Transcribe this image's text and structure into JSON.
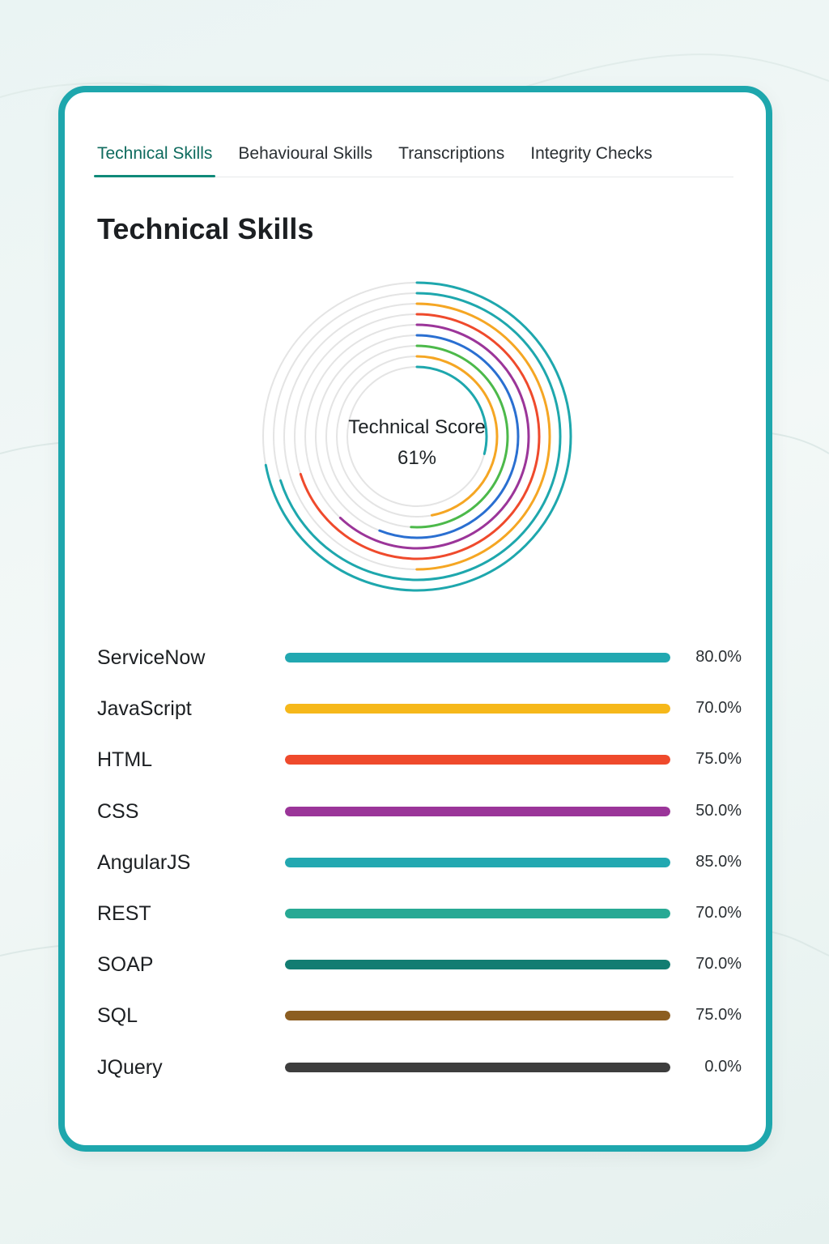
{
  "tabs": [
    {
      "label": "Technical Skills",
      "active": true
    },
    {
      "label": "Behavioural Skills",
      "active": false
    },
    {
      "label": "Transcriptions",
      "active": false
    },
    {
      "label": "Integrity Checks",
      "active": false
    }
  ],
  "section_title": "Technical Skills",
  "score": {
    "label": "Technical Score",
    "value": "61%",
    "value_num": 61
  },
  "skills": [
    {
      "name": "ServiceNow",
      "percent_label": "80.0%",
      "percent": 80.0,
      "color": "#22a8b1"
    },
    {
      "name": "JavaScript",
      "percent_label": "70.0%",
      "percent": 70.0,
      "color": "#f6b81a"
    },
    {
      "name": "HTML",
      "percent_label": "75.0%",
      "percent": 75.0,
      "color": "#ef4a2c"
    },
    {
      "name": "CSS",
      "percent_label": "50.0%",
      "percent": 50.0,
      "color": "#9b3599"
    },
    {
      "name": "AngularJS",
      "percent_label": "85.0%",
      "percent": 85.0,
      "color": "#22a8b1"
    },
    {
      "name": "REST",
      "percent_label": "70.0%",
      "percent": 70.0,
      "color": "#27a994"
    },
    {
      "name": "SOAP",
      "percent_label": "70.0%",
      "percent": 70.0,
      "color": "#137d72"
    },
    {
      "name": "SQL",
      "percent_label": "75.0%",
      "percent": 75.0,
      "color": "#8c5e21"
    },
    {
      "name": "JQuery",
      "percent_label": "0.0%",
      "percent": 0.0,
      "color": "#3d3d3d"
    }
  ],
  "rings": [
    {
      "color": "#1ea7ad",
      "percent": 72
    },
    {
      "color": "#1ea7ad",
      "percent": 70
    },
    {
      "color": "#f5a623",
      "percent": 50
    },
    {
      "color": "#ef4a2c",
      "percent": 70
    },
    {
      "color": "#9b3599",
      "percent": 62
    },
    {
      "color": "#2a6fd1",
      "percent": 56
    },
    {
      "color": "#4cb94a",
      "percent": 51
    },
    {
      "color": "#f5a623",
      "percent": 47
    },
    {
      "color": "#1ea7ad",
      "percent": 29
    }
  ]
}
